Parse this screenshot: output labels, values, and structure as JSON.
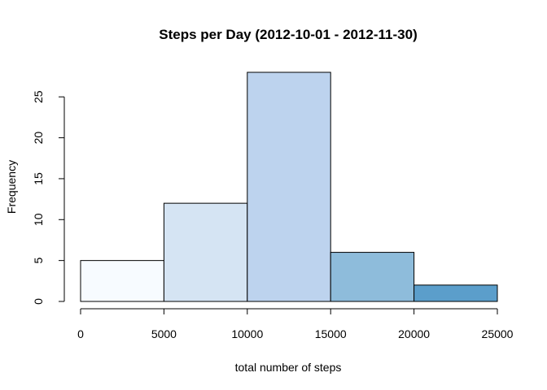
{
  "chart_data": {
    "type": "bar",
    "title": "Steps per Day (2012-10-01 - 2012-11-30)",
    "xlabel": "total number of steps",
    "ylabel": "Frequency",
    "bins": [
      {
        "from": 0,
        "to": 5000,
        "count": 5,
        "color": "#F7FBFF"
      },
      {
        "from": 5000,
        "to": 10000,
        "count": 12,
        "color": "#D5E4F3"
      },
      {
        "from": 10000,
        "to": 15000,
        "count": 28,
        "color": "#BDD3EE"
      },
      {
        "from": 15000,
        "to": 20000,
        "count": 6,
        "color": "#8EBCDB"
      },
      {
        "from": 20000,
        "to": 25000,
        "count": 2,
        "color": "#5B9ECB"
      }
    ],
    "xlim": [
      0,
      25000
    ],
    "ylim": [
      0,
      28
    ],
    "x_ticks": [
      "0",
      "5000",
      "10000",
      "15000",
      "20000",
      "25000"
    ],
    "y_ticks": [
      "0",
      "5",
      "10",
      "15",
      "20",
      "25"
    ],
    "grid": false,
    "legend": "none"
  }
}
